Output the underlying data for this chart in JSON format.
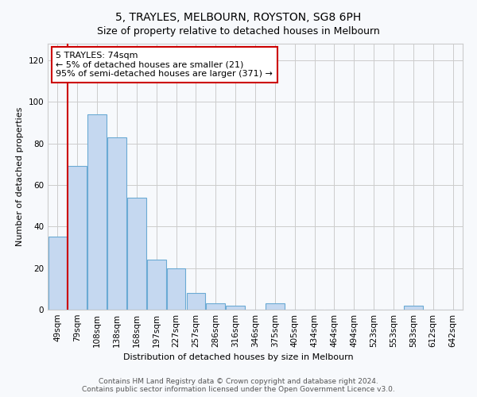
{
  "title": "5, TRAYLES, MELBOURN, ROYSTON, SG8 6PH",
  "subtitle": "Size of property relative to detached houses in Melbourn",
  "xlabel": "Distribution of detached houses by size in Melbourn",
  "ylabel": "Number of detached properties",
  "categories": [
    "49sqm",
    "79sqm",
    "108sqm",
    "138sqm",
    "168sqm",
    "197sqm",
    "227sqm",
    "257sqm",
    "286sqm",
    "316sqm",
    "346sqm",
    "375sqm",
    "405sqm",
    "434sqm",
    "464sqm",
    "494sqm",
    "523sqm",
    "553sqm",
    "583sqm",
    "612sqm",
    "642sqm"
  ],
  "values": [
    35,
    69,
    94,
    83,
    54,
    24,
    20,
    8,
    3,
    2,
    0,
    3,
    0,
    0,
    0,
    0,
    0,
    0,
    2,
    0,
    0
  ],
  "bar_color": "#c5d8f0",
  "bar_edge_color": "#6aaad4",
  "marker_line_color": "#cc0000",
  "annotation_line1": "5 TRAYLES: 74sqm",
  "annotation_line2": "← 5% of detached houses are smaller (21)",
  "annotation_line3": "95% of semi-detached houses are larger (371) →",
  "annotation_box_color": "#ffffff",
  "annotation_box_edge_color": "#cc0000",
  "ylim": [
    0,
    128
  ],
  "yticks": [
    0,
    20,
    40,
    60,
    80,
    100,
    120
  ],
  "grid_color": "#cccccc",
  "background_color": "#f7f9fc",
  "footer": "Contains HM Land Registry data © Crown copyright and database right 2024.\nContains public sector information licensed under the Open Government Licence v3.0.",
  "title_fontsize": 10,
  "subtitle_fontsize": 9,
  "xlabel_fontsize": 8,
  "ylabel_fontsize": 8,
  "tick_fontsize": 7.5,
  "footer_fontsize": 6.5
}
